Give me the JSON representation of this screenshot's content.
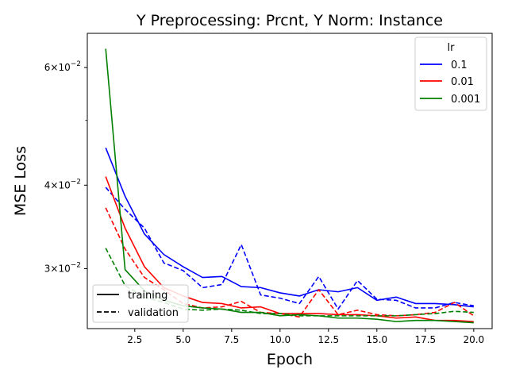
{
  "chart_data": {
    "type": "line",
    "title": "Y Preprocessing: Prcnt, Y Norm: Instance",
    "xlabel": "Epoch",
    "ylabel": "MSE Loss",
    "yscale": "log",
    "xlim": [
      0.05,
      20.95
    ],
    "ylim": [
      0.0244,
      0.0675
    ],
    "x_ticks": [
      2.5,
      5.0,
      7.5,
      10.0,
      12.5,
      15.0,
      17.5,
      20.0
    ],
    "x_tick_labels": [
      "2.5",
      "5.0",
      "7.5",
      "10.0",
      "12.5",
      "15.0",
      "17.5",
      "20.0"
    ],
    "y_major_ticks": [
      0.03,
      0.04,
      0.06
    ],
    "y_tick_labels": [
      {
        "base": "3×10",
        "exp": "−2"
      },
      {
        "base": "4×10",
        "exp": "−2"
      },
      {
        "base": "6×10",
        "exp": "−2"
      }
    ],
    "y_minor_ticks": [
      0.05
    ],
    "grid": false,
    "legend_lr": {
      "title": "lr",
      "placement": "top-right",
      "entries": [
        {
          "label": "0.1",
          "color": "#0000ff"
        },
        {
          "label": "0.01",
          "color": "#ff0000"
        },
        {
          "label": "0.001",
          "color": "#008000"
        }
      ]
    },
    "legend_style": {
      "placement": "lower-left",
      "entries": [
        {
          "label": "training",
          "dash": "solid"
        },
        {
          "label": "validation",
          "dash": "dashed"
        }
      ]
    },
    "x": [
      1,
      2,
      3,
      4,
      5,
      6,
      7,
      8,
      9,
      10,
      11,
      12,
      13,
      14,
      15,
      16,
      17,
      18,
      19,
      20
    ],
    "series": [
      {
        "lr": "0.1",
        "kind": "training",
        "color": "#0000ff",
        "dash": "solid",
        "values": [
          0.0455,
          0.0385,
          0.0338,
          0.0315,
          0.0302,
          0.0291,
          0.0292,
          0.0282,
          0.0281,
          0.0276,
          0.0273,
          0.0279,
          0.0277,
          0.0281,
          0.0269,
          0.0272,
          0.0266,
          0.0266,
          0.0265,
          0.0263
        ]
      },
      {
        "lr": "0.1",
        "kind": "validation",
        "color": "#0000ff",
        "dash": "dashed",
        "values": [
          0.0397,
          0.0368,
          0.0345,
          0.0306,
          0.0298,
          0.0281,
          0.0284,
          0.0326,
          0.0274,
          0.0271,
          0.0266,
          0.0292,
          0.0261,
          0.0288,
          0.027,
          0.0269,
          0.0262,
          0.0262,
          0.0267,
          0.0264
        ]
      },
      {
        "lr": "0.01",
        "kind": "training",
        "color": "#ff0000",
        "dash": "solid",
        "values": [
          0.0412,
          0.0345,
          0.0302,
          0.0281,
          0.0273,
          0.0267,
          0.0266,
          0.0262,
          0.0263,
          0.0257,
          0.0257,
          0.0257,
          0.0256,
          0.0256,
          0.0255,
          0.0253,
          0.0254,
          0.0251,
          0.0251,
          0.025
        ]
      },
      {
        "lr": "0.01",
        "kind": "validation",
        "color": "#ff0000",
        "dash": "dashed",
        "values": [
          0.037,
          0.0321,
          0.0291,
          0.0279,
          0.0266,
          0.0262,
          0.0263,
          0.0268,
          0.0258,
          0.0257,
          0.0254,
          0.0279,
          0.0256,
          0.026,
          0.0256,
          0.0255,
          0.0256,
          0.0258,
          0.0267,
          0.0255
        ]
      },
      {
        "lr": "0.001",
        "kind": "training",
        "color": "#008000",
        "dash": "solid",
        "values": [
          0.064,
          0.0299,
          0.0278,
          0.0269,
          0.0264,
          0.0262,
          0.0261,
          0.0258,
          0.0258,
          0.0255,
          0.0256,
          0.0255,
          0.0253,
          0.0253,
          0.0252,
          0.025,
          0.0251,
          0.0251,
          0.025,
          0.0249
        ]
      },
      {
        "lr": "0.001",
        "kind": "validation",
        "color": "#008000",
        "dash": "dashed",
        "values": [
          0.0322,
          0.0283,
          0.0272,
          0.0267,
          0.0261,
          0.026,
          0.0261,
          0.026,
          0.0257,
          0.0257,
          0.0255,
          0.0255,
          0.0255,
          0.0255,
          0.0255,
          0.0255,
          0.0256,
          0.0257,
          0.0259,
          0.0258
        ]
      }
    ]
  }
}
